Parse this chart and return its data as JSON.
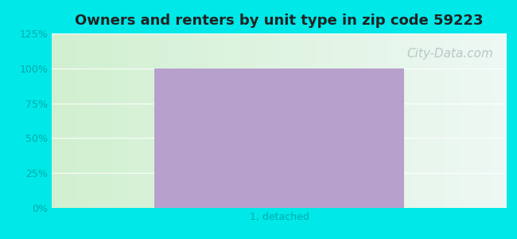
{
  "title": "Owners and renters by unit type in zip code 59223",
  "categories": [
    "1, detached"
  ],
  "values": [
    100
  ],
  "bar_color": "#b8a0cc",
  "bar_width": 0.55,
  "ylim": [
    0,
    125
  ],
  "yticks": [
    0,
    25,
    50,
    75,
    100,
    125
  ],
  "ytick_labels": [
    "0%",
    "25%",
    "50%",
    "75%",
    "100%",
    "125%"
  ],
  "outer_bg_color": "#00e8e8",
  "title_fontsize": 13,
  "tick_fontsize": 9,
  "xlabel_fontsize": 9,
  "watermark_text": "City-Data.com",
  "watermark_color": "#b0c4c4",
  "watermark_fontsize": 11,
  "grid_color": "#d8ece8",
  "tick_color": "#00aaaa"
}
